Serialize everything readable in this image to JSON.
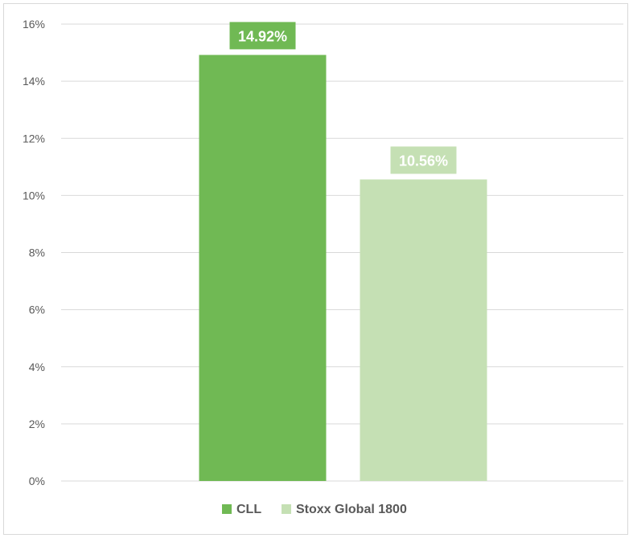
{
  "chart_data": {
    "type": "bar",
    "title": "",
    "xlabel": "",
    "ylabel": "",
    "ylim": [
      0,
      16
    ],
    "yticks": [
      0,
      2,
      4,
      6,
      8,
      10,
      12,
      14,
      16
    ],
    "ytick_labels": [
      "0%",
      "2%",
      "4%",
      "6%",
      "8%",
      "10%",
      "12%",
      "14%",
      "16%"
    ],
    "grid": true,
    "legend_position": "bottom",
    "series": [
      {
        "name": "CLL",
        "value": 14.92,
        "label": "14.92%",
        "color": "#70b954"
      },
      {
        "name": "Stoxx Global 1800",
        "value": 10.56,
        "label": "10.56%",
        "color": "#c5e0b4"
      }
    ]
  },
  "colors": {
    "grid": "#d9d9d9",
    "axis_text": "#595959"
  }
}
